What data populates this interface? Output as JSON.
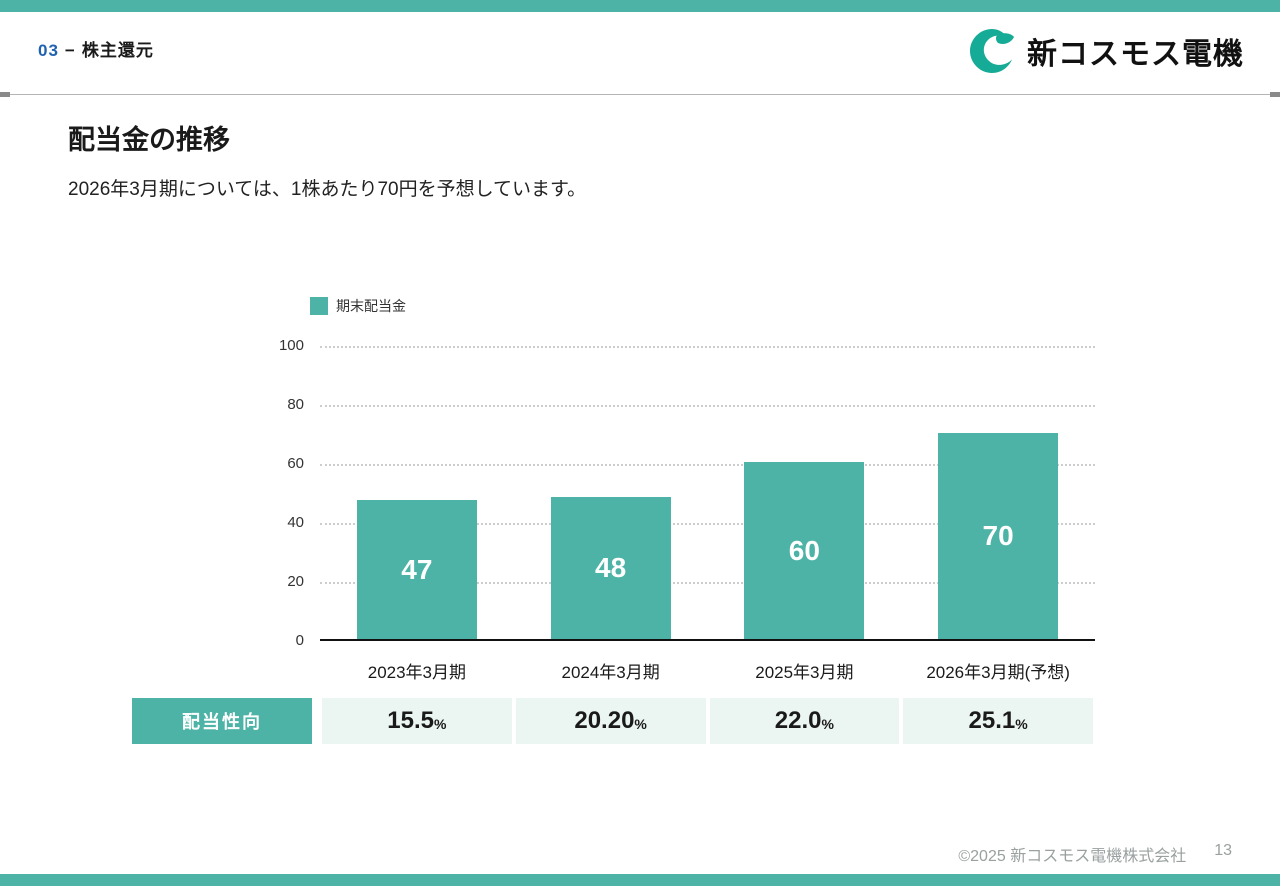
{
  "colors": {
    "accent": "#4cb3a6",
    "section_number": "#2062af",
    "cell_bg": "#ebf5f2"
  },
  "header": {
    "section_number": "03",
    "separator": "−",
    "section_title": "株主還元",
    "logo_text": "新コスモス電機"
  },
  "slide": {
    "title": "配当金の推移",
    "subtitle": "2026年3月期については、1株あたり70円を予想しています。"
  },
  "chart_data": {
    "type": "bar",
    "legend": [
      {
        "label": "期末配当金",
        "color": "#4cb3a6"
      }
    ],
    "categories": [
      "2023年3月期",
      "2024年3月期",
      "2025年3月期",
      "2026年3月期(予想)"
    ],
    "values": [
      47,
      48,
      60,
      70
    ],
    "ylim": [
      0,
      100
    ],
    "yticks": [
      0,
      20,
      40,
      60,
      80,
      100
    ],
    "grid": "horizontal-dotted",
    "bar_color": "#4cb3a6",
    "value_label_color": "#ffffff",
    "legend_position": "top-left"
  },
  "payout_table": {
    "header": "配当性向",
    "cells": [
      {
        "value": "15.5",
        "unit": "%"
      },
      {
        "value": "20.20",
        "unit": "%"
      },
      {
        "value": "22.0",
        "unit": "%"
      },
      {
        "value": "25.1",
        "unit": "%"
      }
    ]
  },
  "footer": {
    "copyright": "©2025 新コスモス電機株式会社",
    "page": "13"
  }
}
